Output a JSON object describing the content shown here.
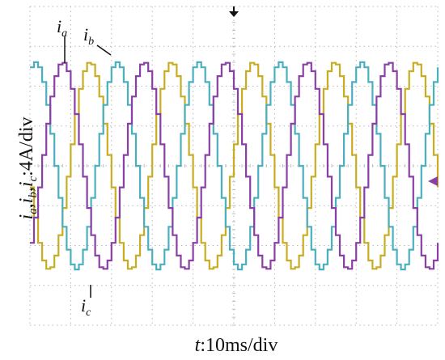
{
  "chart_data": {
    "type": "line",
    "title": "",
    "xlabel": "t:10ms/div",
    "ylabel": "ia,ib,ic:4A/div",
    "xlim": [
      0,
      100
    ],
    "ylim": [
      -4,
      4
    ],
    "grid": true,
    "x_unit_per_div": "10ms",
    "y_unit_per_div": "4A",
    "waveform": {
      "shape": "sinusoid",
      "amplitude_div": 2.6,
      "period_ms": 20,
      "sample_step_ms": 1
    },
    "series": [
      {
        "name": "ia",
        "phase_deg": 120,
        "color": "#c8ad22"
      },
      {
        "name": "ib",
        "phase_deg": 0,
        "color": "#4ab0bf"
      },
      {
        "name": "ic",
        "phase_deg": 240,
        "color": "#8a3fa6"
      }
    ],
    "annotations": [
      "ia",
      "ib",
      "ic"
    ]
  },
  "labels": {
    "ia": {
      "main": "i",
      "sub": "a"
    },
    "ib": {
      "main": "i",
      "sub": "b"
    },
    "ic": {
      "main": "i",
      "sub": "c"
    }
  },
  "axis_text": {
    "x_var": "t",
    "x_rest": ":10ms/div",
    "y_i1": "i",
    "y_s1": "a",
    "y_i2": "i",
    "y_s2": "b",
    "y_i3": "i",
    "y_s3": "c",
    "y_rest": ":4A/div"
  },
  "markers": {
    "trigger_marker_color": "#111111",
    "level_marker_color": "#8a3fa6"
  }
}
